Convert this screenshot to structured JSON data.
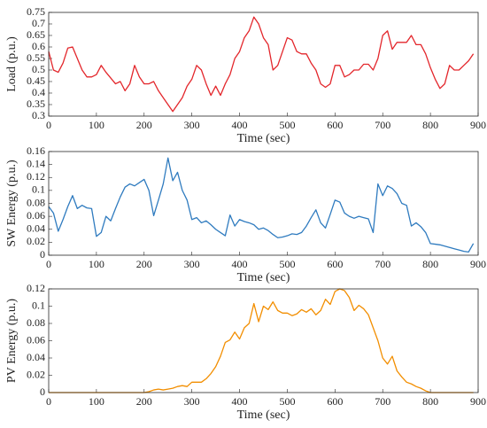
{
  "chart_data": [
    {
      "type": "line",
      "xlabel": "Time (sec)",
      "ylabel": "Load (p.u.)",
      "x": [
        0,
        10,
        20,
        30,
        40,
        50,
        60,
        70,
        80,
        90,
        100,
        110,
        120,
        130,
        140,
        150,
        160,
        170,
        180,
        190,
        200,
        210,
        220,
        230,
        240,
        250,
        260,
        270,
        280,
        290,
        300,
        310,
        320,
        330,
        340,
        350,
        360,
        370,
        380,
        390,
        400,
        410,
        420,
        430,
        440,
        450,
        460,
        470,
        480,
        490,
        500,
        510,
        520,
        530,
        540,
        550,
        560,
        570,
        580,
        590,
        600,
        610,
        620,
        630,
        640,
        650,
        660,
        670,
        680,
        690,
        700,
        710,
        720,
        730,
        740,
        750,
        760,
        770,
        780,
        790,
        800,
        810,
        820,
        830,
        840,
        850,
        860,
        870,
        880,
        890
      ],
      "series": [
        {
          "color": "#e3262b",
          "values": [
            0.58,
            0.5,
            0.49,
            0.53,
            0.595,
            0.6,
            0.55,
            0.5,
            0.47,
            0.47,
            0.48,
            0.52,
            0.49,
            0.465,
            0.44,
            0.45,
            0.41,
            0.44,
            0.52,
            0.47,
            0.44,
            0.44,
            0.45,
            0.41,
            0.38,
            0.35,
            0.32,
            0.35,
            0.38,
            0.43,
            0.46,
            0.52,
            0.5,
            0.44,
            0.39,
            0.43,
            0.39,
            0.44,
            0.48,
            0.55,
            0.58,
            0.64,
            0.67,
            0.73,
            0.7,
            0.64,
            0.61,
            0.5,
            0.52,
            0.58,
            0.64,
            0.63,
            0.58,
            0.57,
            0.57,
            0.53,
            0.5,
            0.44,
            0.425,
            0.44,
            0.52,
            0.52,
            0.47,
            0.48,
            0.5,
            0.5,
            0.525,
            0.525,
            0.5,
            0.55,
            0.65,
            0.67,
            0.59,
            0.62,
            0.62,
            0.62,
            0.65,
            0.61,
            0.61,
            0.57,
            0.51,
            0.46,
            0.42,
            0.44,
            0.52,
            0.5,
            0.5,
            0.52,
            0.54,
            0.57
          ]
        }
      ],
      "xlim": [
        0,
        900
      ],
      "xticks": [
        0,
        100,
        200,
        300,
        400,
        500,
        600,
        700,
        800,
        900
      ],
      "ylim": [
        0.3,
        0.75
      ],
      "yticks": [
        0.3,
        0.35,
        0.4,
        0.45,
        0.5,
        0.55,
        0.6,
        0.65,
        0.7,
        0.75
      ],
      "grid": false
    },
    {
      "type": "line",
      "xlabel": "Time (sec)",
      "ylabel": "SW Energy (p.u.)",
      "x": [
        0,
        10,
        20,
        30,
        40,
        50,
        60,
        70,
        80,
        90,
        100,
        110,
        120,
        130,
        140,
        150,
        160,
        170,
        180,
        190,
        200,
        210,
        220,
        230,
        240,
        250,
        260,
        270,
        280,
        290,
        300,
        310,
        320,
        330,
        340,
        350,
        360,
        370,
        380,
        390,
        400,
        410,
        420,
        430,
        440,
        450,
        460,
        470,
        480,
        490,
        500,
        510,
        520,
        530,
        540,
        550,
        560,
        570,
        580,
        590,
        600,
        610,
        620,
        630,
        640,
        650,
        660,
        670,
        680,
        690,
        700,
        710,
        720,
        730,
        740,
        750,
        760,
        770,
        780,
        790,
        800,
        810,
        820,
        830,
        840,
        850,
        860,
        870,
        880,
        890
      ],
      "series": [
        {
          "color": "#2f7bbf",
          "values": [
            0.075,
            0.065,
            0.037,
            0.055,
            0.075,
            0.092,
            0.072,
            0.077,
            0.073,
            0.072,
            0.029,
            0.035,
            0.06,
            0.053,
            0.072,
            0.09,
            0.105,
            0.11,
            0.107,
            0.112,
            0.117,
            0.1,
            0.061,
            0.085,
            0.11,
            0.15,
            0.115,
            0.128,
            0.1,
            0.085,
            0.055,
            0.058,
            0.05,
            0.053,
            0.047,
            0.04,
            0.035,
            0.03,
            0.062,
            0.045,
            0.055,
            0.052,
            0.05,
            0.047,
            0.04,
            0.042,
            0.038,
            0.032,
            0.027,
            0.028,
            0.03,
            0.033,
            0.032,
            0.035,
            0.045,
            0.058,
            0.07,
            0.05,
            0.042,
            0.063,
            0.085,
            0.082,
            0.065,
            0.06,
            0.057,
            0.06,
            0.058,
            0.056,
            0.035,
            0.11,
            0.092,
            0.107,
            0.103,
            0.095,
            0.08,
            0.077,
            0.045,
            0.05,
            0.044,
            0.035,
            0.018,
            0.017,
            0.016,
            0.014,
            0.012,
            0.01,
            0.008,
            0.006,
            0.005,
            0.018
          ]
        }
      ],
      "xlim": [
        0,
        900
      ],
      "xticks": [
        0,
        100,
        200,
        300,
        400,
        500,
        600,
        700,
        800,
        900
      ],
      "ylim": [
        0,
        0.16
      ],
      "yticks": [
        0,
        0.02,
        0.04,
        0.06,
        0.08,
        0.1,
        0.12,
        0.14,
        0.16
      ],
      "grid": false
    },
    {
      "type": "line",
      "xlabel": "Time (sec)",
      "ylabel": "PV Energy (p.u.)",
      "x": [
        0,
        10,
        20,
        30,
        40,
        50,
        60,
        70,
        80,
        90,
        100,
        110,
        120,
        130,
        140,
        150,
        160,
        170,
        180,
        190,
        200,
        210,
        220,
        230,
        240,
        250,
        260,
        270,
        280,
        290,
        300,
        310,
        320,
        330,
        340,
        350,
        360,
        370,
        380,
        390,
        400,
        410,
        420,
        430,
        440,
        450,
        460,
        470,
        480,
        490,
        500,
        510,
        520,
        530,
        540,
        550,
        560,
        570,
        580,
        590,
        600,
        610,
        620,
        630,
        640,
        650,
        660,
        670,
        680,
        690,
        700,
        710,
        720,
        730,
        740,
        750,
        760,
        770,
        780,
        790,
        800,
        810,
        820,
        830,
        840,
        850,
        860,
        870,
        880,
        890
      ],
      "series": [
        {
          "color": "#f28e00",
          "values": [
            0,
            0,
            0,
            0,
            0,
            0,
            0,
            0,
            0,
            0,
            0,
            0,
            0,
            0,
            0,
            0,
            0,
            0,
            0,
            0,
            0,
            0.001,
            0.003,
            0.004,
            0.003,
            0.004,
            0.005,
            0.007,
            0.008,
            0.007,
            0.012,
            0.012,
            0.012,
            0.016,
            0.022,
            0.03,
            0.042,
            0.058,
            0.061,
            0.07,
            0.062,
            0.075,
            0.08,
            0.103,
            0.082,
            0.1,
            0.096,
            0.105,
            0.095,
            0.092,
            0.092,
            0.089,
            0.091,
            0.096,
            0.093,
            0.097,
            0.09,
            0.095,
            0.108,
            0.102,
            0.117,
            0.12,
            0.118,
            0.11,
            0.095,
            0.101,
            0.097,
            0.09,
            0.075,
            0.06,
            0.04,
            0.033,
            0.042,
            0.025,
            0.018,
            0.012,
            0.01,
            0.007,
            0.005,
            0.002,
            0,
            0,
            0,
            0,
            0,
            0,
            0,
            0,
            0,
            0
          ]
        }
      ],
      "xlim": [
        0,
        900
      ],
      "xticks": [
        0,
        100,
        200,
        300,
        400,
        500,
        600,
        700,
        800,
        900
      ],
      "ylim": [
        0,
        0.12
      ],
      "yticks": [
        0,
        0.02,
        0.04,
        0.06,
        0.08,
        0.1,
        0.12
      ],
      "grid": false
    }
  ]
}
